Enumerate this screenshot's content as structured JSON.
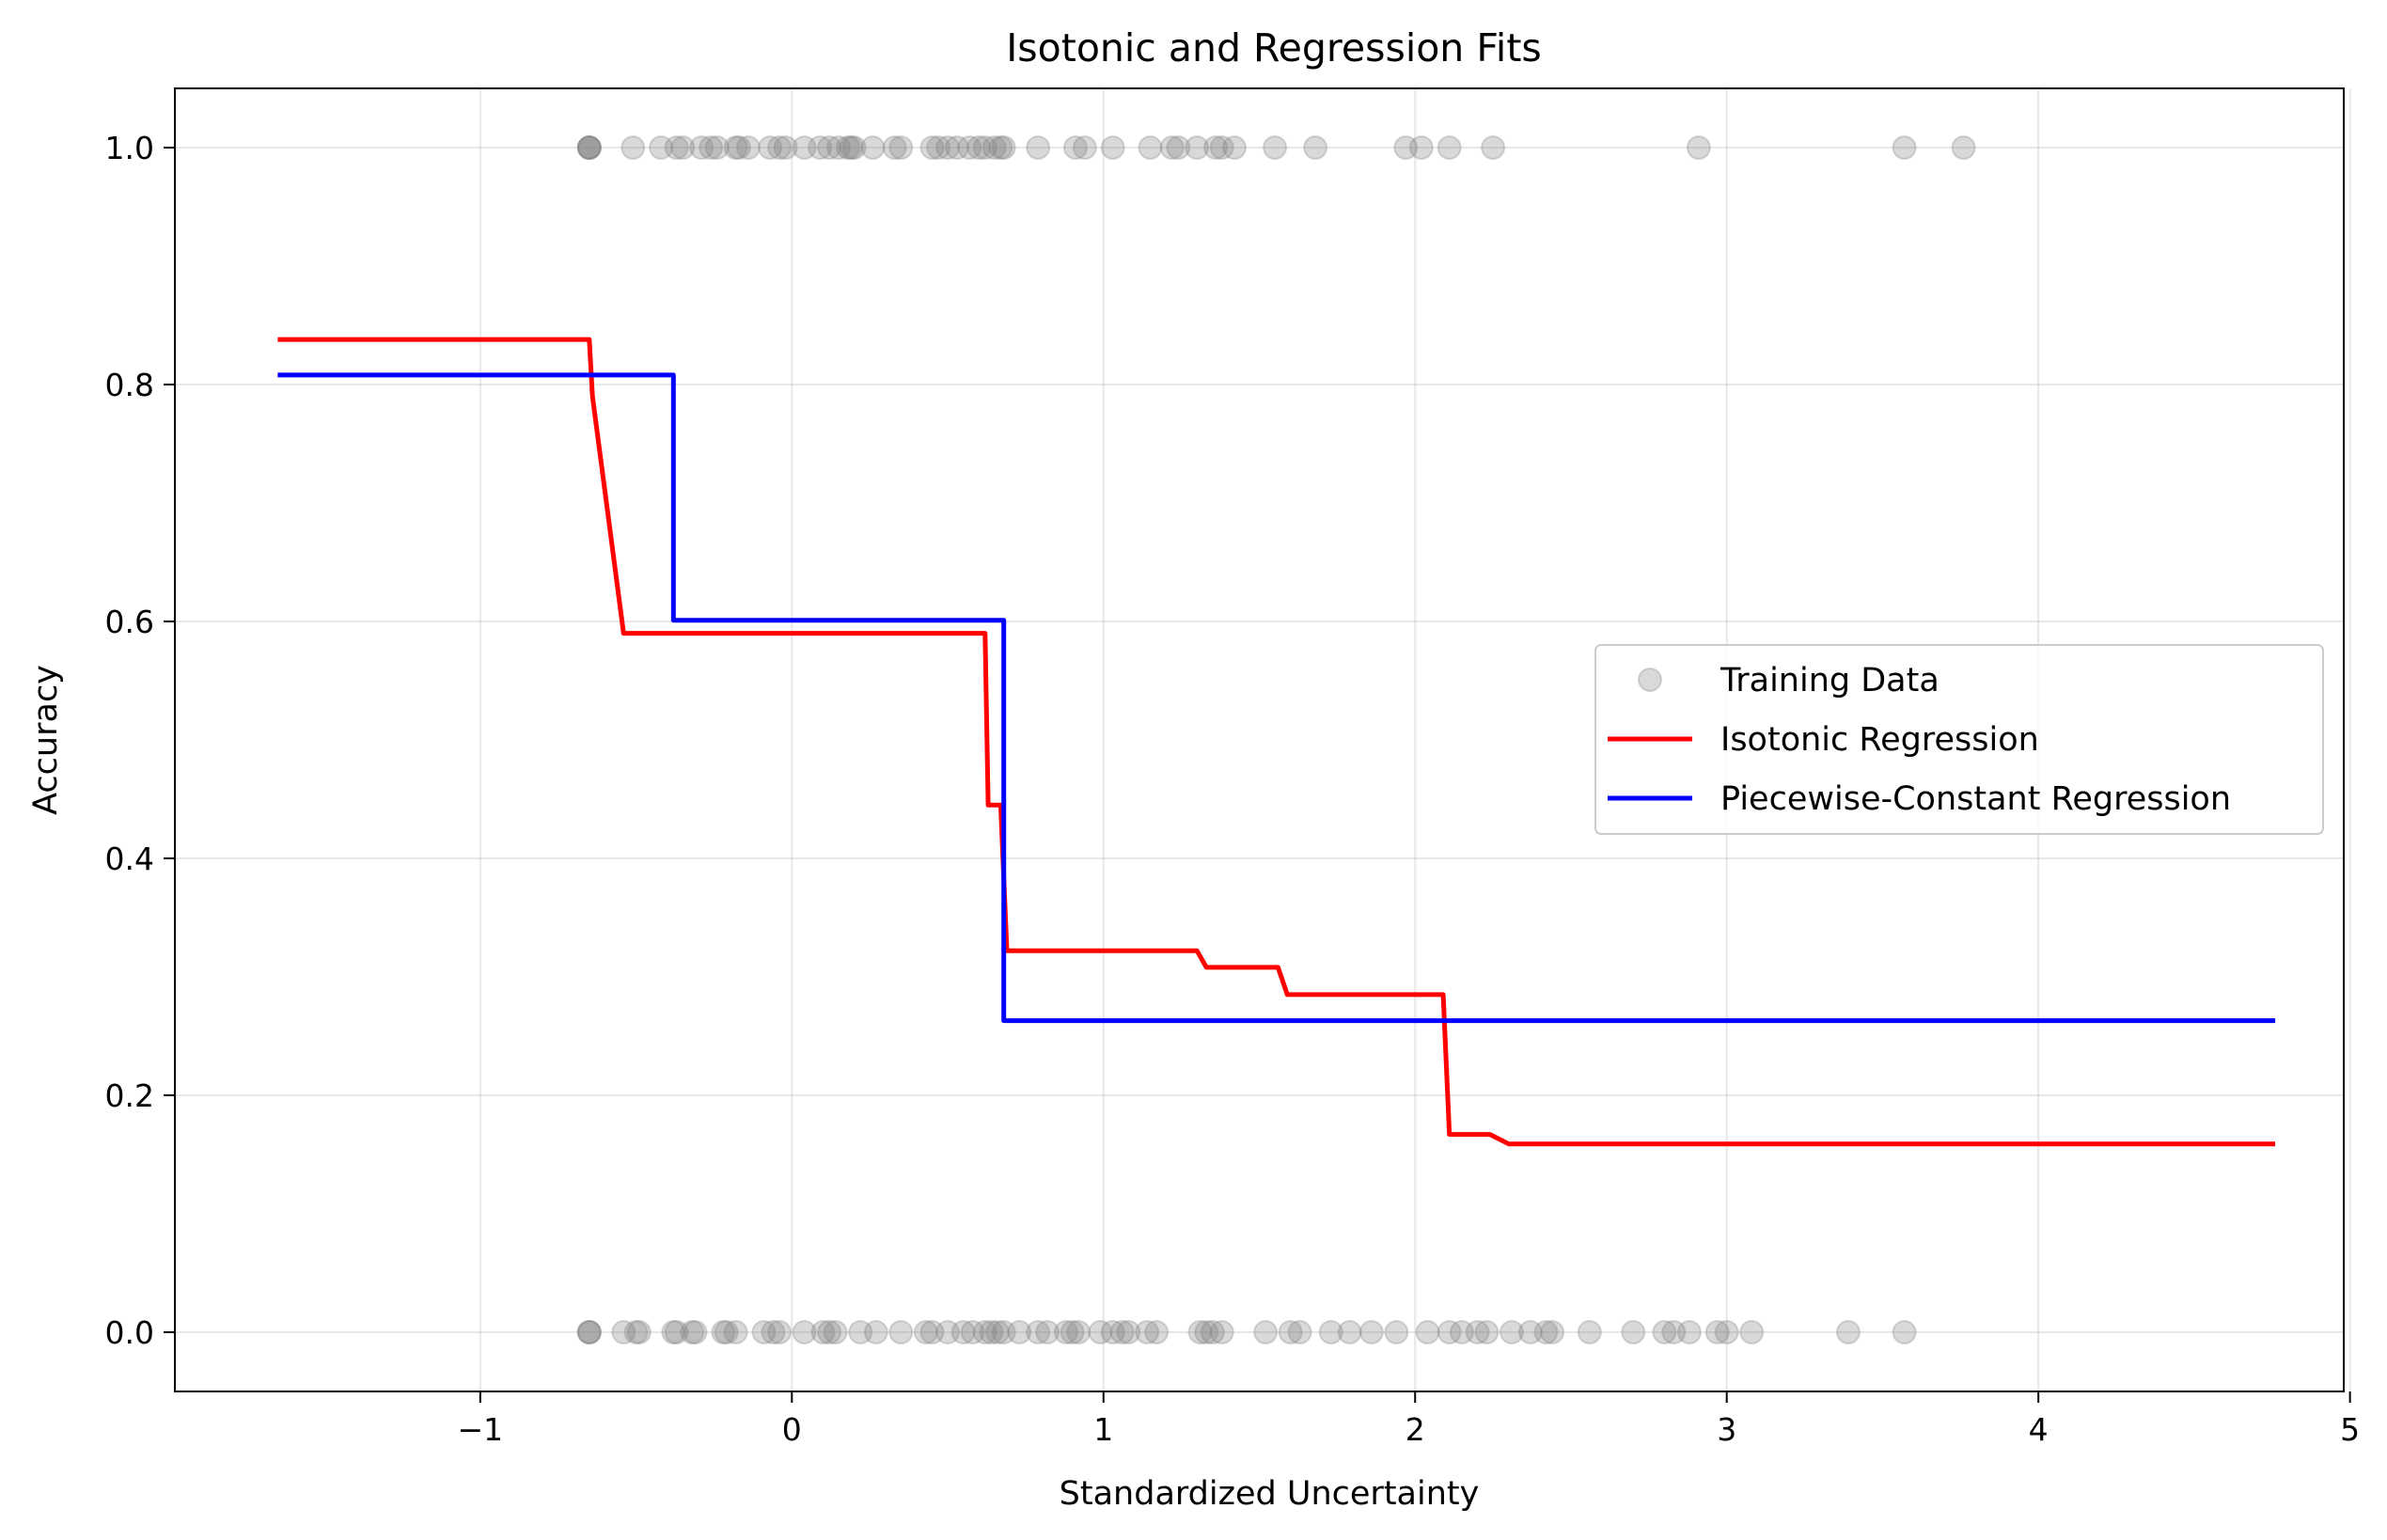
{
  "chart_data": {
    "type": "scatter",
    "title": "Isotonic and Regression Fits",
    "xlabel": "Standardized Uncertainty",
    "ylabel": "Accuracy",
    "xlim": [
      -1.98,
      4.98
    ],
    "ylim": [
      -0.05,
      1.05
    ],
    "xticks": [
      -1,
      0,
      1,
      2,
      3,
      4,
      5
    ],
    "xtick_labels": [
      "−1",
      "0",
      "1",
      "2",
      "3",
      "4",
      "5"
    ],
    "yticks": [
      0.0,
      0.2,
      0.4,
      0.6,
      0.8,
      1.0
    ],
    "ytick_labels": [
      "0.0",
      "0.2",
      "0.4",
      "0.6",
      "0.8",
      "1.0"
    ],
    "grid": true,
    "legend_position": "center-right",
    "series": [
      {
        "name": "Training Data",
        "kind": "scatter",
        "color": "#808080",
        "points": [
          [
            -0.65,
            1
          ],
          [
            -0.65,
            1
          ],
          [
            -0.65,
            1
          ],
          [
            -0.65,
            1
          ],
          [
            -0.51,
            1
          ],
          [
            -0.42,
            1
          ],
          [
            -0.37,
            1
          ],
          [
            -0.35,
            1
          ],
          [
            -0.29,
            1
          ],
          [
            -0.26,
            1
          ],
          [
            -0.24,
            1
          ],
          [
            -0.18,
            1
          ],
          [
            -0.17,
            1
          ],
          [
            -0.14,
            1
          ],
          [
            -0.07,
            1
          ],
          [
            -0.04,
            1
          ],
          [
            -0.02,
            1
          ],
          [
            0.04,
            1
          ],
          [
            0.09,
            1
          ],
          [
            0.12,
            1
          ],
          [
            0.15,
            1
          ],
          [
            0.18,
            1
          ],
          [
            0.19,
            1
          ],
          [
            0.2,
            1
          ],
          [
            0.26,
            1
          ],
          [
            0.33,
            1
          ],
          [
            0.35,
            1
          ],
          [
            0.45,
            1
          ],
          [
            0.47,
            1
          ],
          [
            0.5,
            1
          ],
          [
            0.53,
            1
          ],
          [
            0.57,
            1
          ],
          [
            0.6,
            1
          ],
          [
            0.62,
            1
          ],
          [
            0.65,
            1
          ],
          [
            0.67,
            1
          ],
          [
            0.68,
            1
          ],
          [
            0.79,
            1
          ],
          [
            0.91,
            1
          ],
          [
            0.94,
            1
          ],
          [
            1.03,
            1
          ],
          [
            1.15,
            1
          ],
          [
            1.22,
            1
          ],
          [
            1.24,
            1
          ],
          [
            1.3,
            1
          ],
          [
            1.36,
            1
          ],
          [
            1.38,
            1
          ],
          [
            1.42,
            1
          ],
          [
            1.55,
            1
          ],
          [
            1.68,
            1
          ],
          [
            1.97,
            1
          ],
          [
            2.02,
            1
          ],
          [
            2.11,
            1
          ],
          [
            2.25,
            1
          ],
          [
            2.91,
            1
          ],
          [
            3.57,
            1
          ],
          [
            3.76,
            1
          ],
          [
            -0.65,
            0
          ],
          [
            -0.65,
            0
          ],
          [
            -0.65,
            0
          ],
          [
            -0.54,
            0
          ],
          [
            -0.5,
            0
          ],
          [
            -0.49,
            0
          ],
          [
            -0.38,
            0
          ],
          [
            -0.37,
            0
          ],
          [
            -0.32,
            0
          ],
          [
            -0.31,
            0
          ],
          [
            -0.22,
            0
          ],
          [
            -0.21,
            0
          ],
          [
            -0.18,
            0
          ],
          [
            -0.09,
            0
          ],
          [
            -0.06,
            0
          ],
          [
            -0.04,
            0
          ],
          [
            0.04,
            0
          ],
          [
            0.1,
            0
          ],
          [
            0.12,
            0
          ],
          [
            0.14,
            0
          ],
          [
            0.22,
            0
          ],
          [
            0.27,
            0
          ],
          [
            0.35,
            0
          ],
          [
            0.43,
            0
          ],
          [
            0.45,
            0
          ],
          [
            0.5,
            0
          ],
          [
            0.55,
            0
          ],
          [
            0.58,
            0
          ],
          [
            0.62,
            0
          ],
          [
            0.64,
            0
          ],
          [
            0.66,
            0
          ],
          [
            0.68,
            0
          ],
          [
            0.73,
            0
          ],
          [
            0.79,
            0
          ],
          [
            0.82,
            0
          ],
          [
            0.88,
            0
          ],
          [
            0.9,
            0
          ],
          [
            0.92,
            0
          ],
          [
            0.99,
            0
          ],
          [
            1.03,
            0
          ],
          [
            1.06,
            0
          ],
          [
            1.08,
            0
          ],
          [
            1.14,
            0
          ],
          [
            1.17,
            0
          ],
          [
            1.31,
            0
          ],
          [
            1.33,
            0
          ],
          [
            1.35,
            0
          ],
          [
            1.38,
            0
          ],
          [
            1.52,
            0
          ],
          [
            1.6,
            0
          ],
          [
            1.63,
            0
          ],
          [
            1.73,
            0
          ],
          [
            1.79,
            0
          ],
          [
            1.86,
            0
          ],
          [
            1.94,
            0
          ],
          [
            2.04,
            0
          ],
          [
            2.11,
            0
          ],
          [
            2.15,
            0
          ],
          [
            2.2,
            0
          ],
          [
            2.23,
            0
          ],
          [
            2.31,
            0
          ],
          [
            2.37,
            0
          ],
          [
            2.42,
            0
          ],
          [
            2.44,
            0
          ],
          [
            2.56,
            0
          ],
          [
            2.7,
            0
          ],
          [
            2.8,
            0
          ],
          [
            2.83,
            0
          ],
          [
            2.88,
            0
          ],
          [
            2.97,
            0
          ],
          [
            3.0,
            0
          ],
          [
            3.08,
            0
          ],
          [
            3.39,
            0
          ],
          [
            3.57,
            0
          ]
        ]
      },
      {
        "name": "Isotonic Regression",
        "kind": "line",
        "color": "#ff0000",
        "points": [
          [
            -1.65,
            0.838
          ],
          [
            -0.65,
            0.838
          ],
          [
            -0.64,
            0.79
          ],
          [
            -0.54,
            0.59
          ],
          [
            0.62,
            0.59
          ],
          [
            0.63,
            0.445
          ],
          [
            0.67,
            0.445
          ],
          [
            0.69,
            0.322
          ],
          [
            1.3,
            0.322
          ],
          [
            1.33,
            0.308
          ],
          [
            1.56,
            0.308
          ],
          [
            1.59,
            0.285
          ],
          [
            2.09,
            0.285
          ],
          [
            2.11,
            0.167
          ],
          [
            2.24,
            0.167
          ],
          [
            2.3,
            0.159
          ],
          [
            4.76,
            0.159
          ]
        ]
      },
      {
        "name": "Piecewise-Constant Regression",
        "kind": "line",
        "color": "#0000ff",
        "points": [
          [
            -1.65,
            0.808
          ],
          [
            -0.38,
            0.808
          ],
          [
            -0.38,
            0.601
          ],
          [
            0.68,
            0.601
          ],
          [
            0.68,
            0.263
          ],
          [
            4.76,
            0.263
          ]
        ]
      }
    ]
  }
}
